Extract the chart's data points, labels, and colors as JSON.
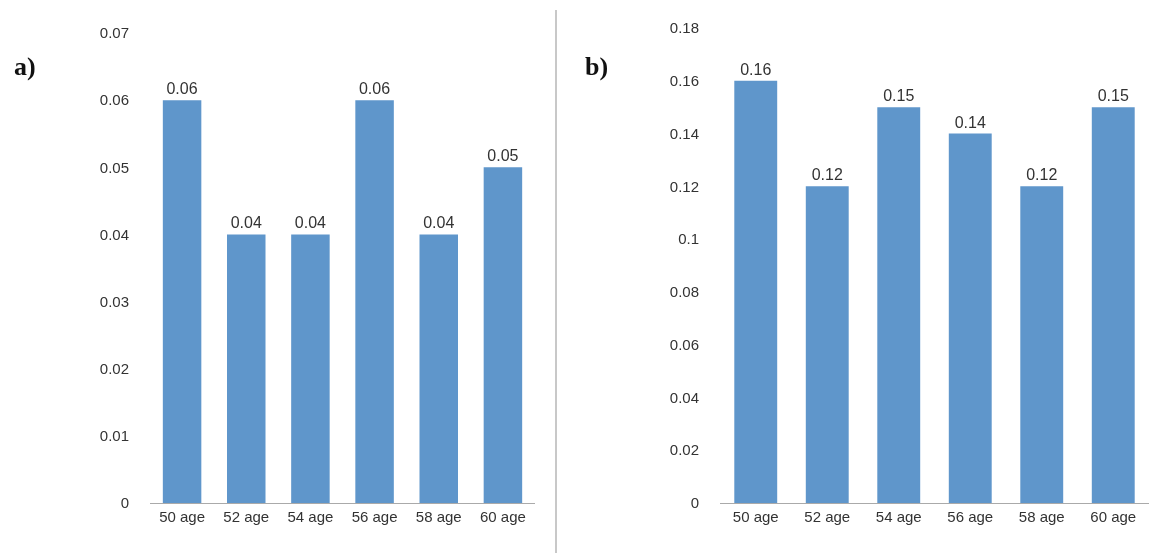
{
  "chart_data": [
    {
      "type": "bar",
      "title": "a)",
      "categories": [
        "50 age",
        "52 age",
        "54 age",
        "56 age",
        "58 age",
        "60 age"
      ],
      "values": [
        0.06,
        0.04,
        0.04,
        0.06,
        0.04,
        0.05
      ],
      "color": "#5f96cb",
      "ylim": [
        0,
        0.07
      ],
      "yticks": [
        0,
        0.01,
        0.02,
        0.03,
        0.04,
        0.05,
        0.06,
        0.07
      ],
      "grid": false,
      "data_labels": true
    },
    {
      "type": "bar",
      "title": "b)",
      "categories": [
        "50 age",
        "52 age",
        "54 age",
        "56 age",
        "58 age",
        "60 age"
      ],
      "values": [
        0.16,
        0.12,
        0.15,
        0.14,
        0.12,
        0.15
      ],
      "color": "#5f96cb",
      "ylim": [
        0,
        0.18
      ],
      "yticks": [
        0,
        0.02,
        0.04,
        0.06,
        0.08,
        0.1,
        0.12,
        0.14,
        0.16,
        0.18
      ],
      "grid": false,
      "data_labels": true
    }
  ]
}
